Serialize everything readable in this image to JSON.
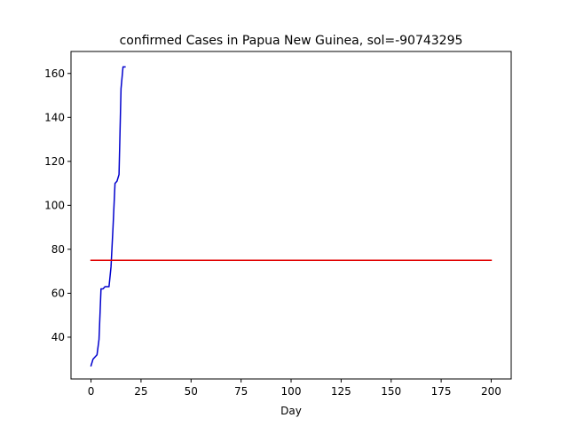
{
  "chart_data": {
    "type": "line",
    "title": "confirmed Cases in Papua New Guinea, sol=-90743295",
    "xlabel": "Day",
    "ylabel": "",
    "xlim": [
      -10,
      210
    ],
    "ylim": [
      21,
      170
    ],
    "x_ticks": [
      0,
      25,
      50,
      75,
      100,
      125,
      150,
      175,
      200
    ],
    "y_ticks": [
      40,
      60,
      80,
      100,
      120,
      140,
      160
    ],
    "grid": false,
    "legend": "none",
    "series": [
      {
        "color": "#0000cd",
        "x": [
          0,
          1,
          2,
          3,
          4,
          5,
          6,
          7,
          8,
          9,
          10,
          11,
          12,
          13,
          14,
          15,
          16,
          17
        ],
        "y": [
          27,
          30,
          31,
          32,
          39,
          62,
          62,
          63,
          63,
          63,
          72,
          90,
          110,
          111,
          114,
          153,
          163,
          163
        ]
      },
      {
        "color": "#e00000",
        "x": [
          0,
          200
        ],
        "y": [
          75,
          75
        ]
      }
    ]
  }
}
